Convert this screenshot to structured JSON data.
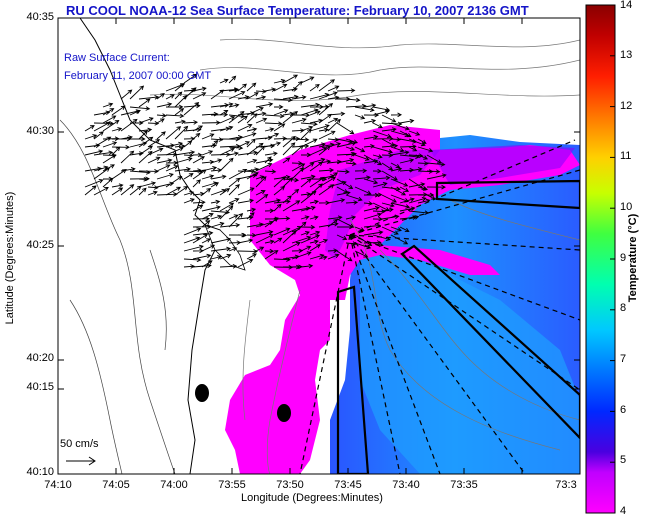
{
  "title": "RU COOL  NOAA-12  Sea Surface Temperature:  February 10, 2007 2136 GMT",
  "annotation": {
    "line1": "Raw Surface Current:",
    "line2": "February 11, 2007 00:00 GMT"
  },
  "axes": {
    "xlabel": "Longitude (Degrees:Minutes)",
    "ylabel": "Latitude (Degrees:Minutes)",
    "x_ticks": [
      "74:10",
      "74:05",
      "74:00",
      "73:55",
      "73:50",
      "73:45",
      "73:40",
      "73:35",
      "73:3"
    ],
    "y_ticks": [
      "40:35",
      "40:30",
      "40:25",
      "40:20",
      "40:15",
      "40:10"
    ]
  },
  "scale_label": "50 cm/s",
  "colorbar": {
    "title": "Temperature (°C)",
    "ticks": [
      "14",
      "13",
      "12",
      "11",
      "10",
      "9",
      "8",
      "7",
      "6",
      "5",
      "4"
    ],
    "range": [
      4,
      14
    ]
  },
  "colors": {
    "title_blue": "#1414c8",
    "sst_warm_magenta": "#ff00ff",
    "sst_cool_blue": "#1e6cf0"
  }
}
